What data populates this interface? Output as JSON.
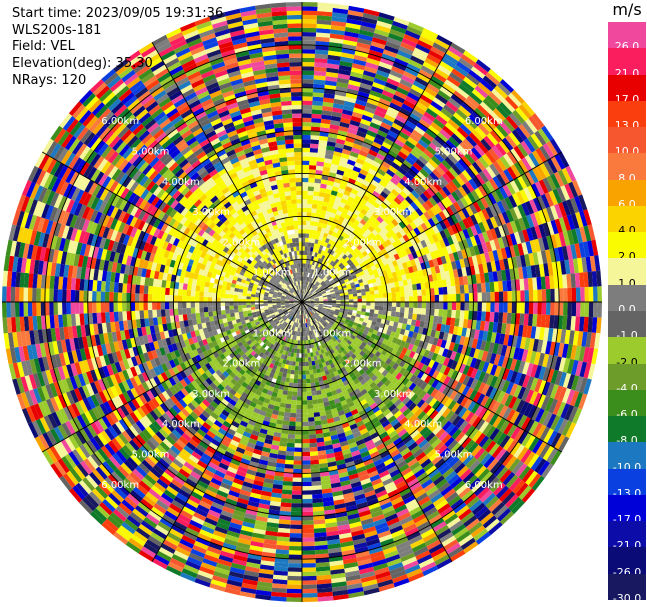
{
  "info": {
    "start_time": "Start time: 2023/09/05 19:31:36",
    "device": "WLS200s-181",
    "field": "Field: VEL",
    "elevation": "Elevation(deg): 35.30",
    "nrays": "NRays: 120"
  },
  "chart_data": {
    "type": "heatmap",
    "projection": "polar",
    "field": "VEL",
    "units": "m/s",
    "nrays": 120,
    "elevation_deg": 35.3,
    "range_ring_labels": [
      "1.00km",
      "2.00km",
      "3.00km",
      "4.00km",
      "5.00km",
      "6.00km"
    ],
    "range_rings_km": [
      1,
      2,
      3,
      4,
      5,
      6
    ],
    "max_range_km": 7,
    "spokes_deg": [
      0,
      30,
      60,
      90,
      120,
      150,
      180,
      210,
      240,
      270,
      300,
      330
    ],
    "colorbar": {
      "unit_label": "m/s",
      "levels": [
        {
          "label": "26.0",
          "color": "#f0489c"
        },
        {
          "label": "21.0",
          "color": "#fa1e5e"
        },
        {
          "label": "17.0",
          "color": "#e80000"
        },
        {
          "label": "13.0",
          "color": "#fb3e0d"
        },
        {
          "label": "10.0",
          "color": "#f7572f"
        },
        {
          "label": "8.0",
          "color": "#f97a3c"
        },
        {
          "label": "6.0",
          "color": "#f9a300"
        },
        {
          "label": "4.0",
          "color": "#fbd400"
        },
        {
          "label": "2.0",
          "color": "#fafa00"
        },
        {
          "label": "1.0",
          "color": "#f5f59a"
        },
        {
          "label": "0.0",
          "color": "#7d7d7d"
        },
        {
          "label": "-1.0",
          "color": "#646464"
        },
        {
          "label": "-2.0",
          "color": "#9ccb2e"
        },
        {
          "label": "-4.0",
          "color": "#6e9c2a"
        },
        {
          "label": "-6.0",
          "color": "#3b8d1c"
        },
        {
          "label": "-8.0",
          "color": "#0e7a2a"
        },
        {
          "label": "-10.0",
          "color": "#1c78c0"
        },
        {
          "label": "-13.0",
          "color": "#0a40e0"
        },
        {
          "label": "-17.0",
          "color": "#0000d8"
        },
        {
          "label": "-21.0",
          "color": "#0c0ca8"
        },
        {
          "label": "-26.0",
          "color": "#0b0b78"
        },
        {
          "label": "-30.0",
          "color": "#181860"
        }
      ]
    },
    "regions": [
      {
        "name": "clear-air-yellow-north",
        "dominant_value_range": [
          1.0,
          4.0
        ]
      },
      {
        "name": "gray-near-zero-center",
        "dominant_value_range": [
          -1.0,
          1.0
        ]
      },
      {
        "name": "green-southeast",
        "dominant_value_range": [
          -6.0,
          -2.0
        ]
      },
      {
        "name": "noise-outer-ring",
        "dominant_value_range": [
          -30.0,
          26.0
        ]
      }
    ]
  }
}
